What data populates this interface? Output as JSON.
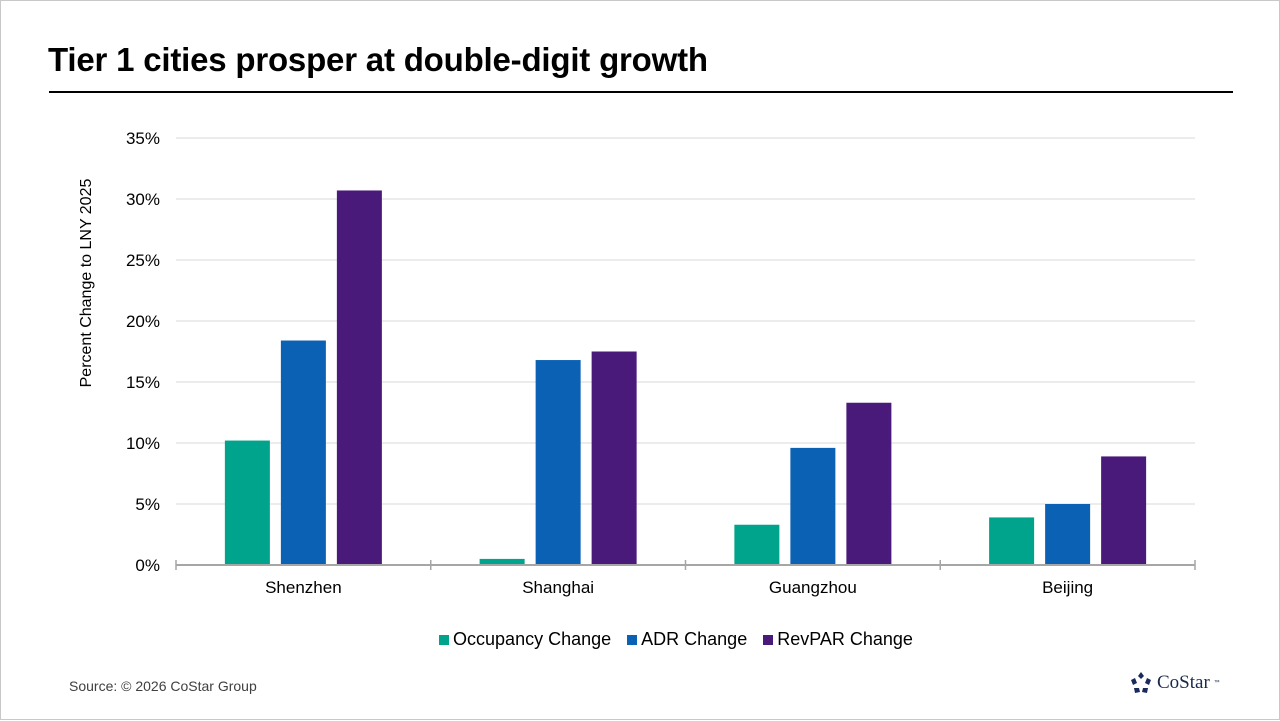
{
  "title": "Tier 1 cities prosper at double-digit growth",
  "source": "Source: © 2026 CoStar Group",
  "logo": {
    "name": "CoStar",
    "tm": "™",
    "color": "#1A2A5A"
  },
  "chart_data": {
    "type": "bar",
    "title": "Tier 1 cities prosper at double-digit growth",
    "xlabel": "",
    "ylabel": "Percent Change to LNY 2025",
    "ylim": [
      0,
      35
    ],
    "yticks": [
      0,
      5,
      10,
      15,
      20,
      25,
      30,
      35
    ],
    "ytick_labels": [
      "0%",
      "5%",
      "10%",
      "15%",
      "20%",
      "25%",
      "30%",
      "35%"
    ],
    "grid": true,
    "legend_position": "bottom",
    "categories": [
      "Shenzhen",
      "Shanghai",
      "Guangzhou",
      "Beijing"
    ],
    "series": [
      {
        "name": "Occupancy Change",
        "color": "#00A38B",
        "values": [
          10.2,
          0.5,
          3.3,
          3.9
        ]
      },
      {
        "name": "ADR Change",
        "color": "#0B62B4",
        "values": [
          18.4,
          16.8,
          9.6,
          5.0
        ]
      },
      {
        "name": "RevPAR Change",
        "color": "#4A1A7A",
        "values": [
          30.7,
          17.5,
          13.3,
          8.9
        ]
      }
    ]
  }
}
